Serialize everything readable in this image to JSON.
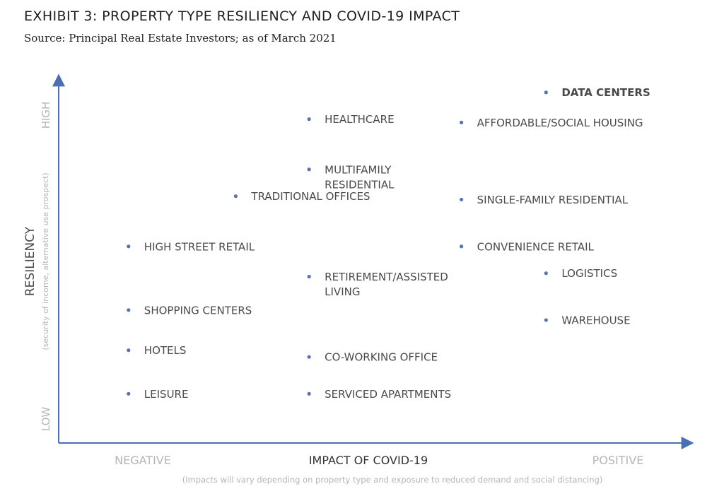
{
  "title": "EXHIBIT 3: PROPERTY TYPE RESILIENCY AND COVID-19 IMPACT",
  "subtitle": "Source: Principal Real Estate Investors; as of March 2021",
  "chart_data": {
    "type": "scatter",
    "x_axis": {
      "label": "IMPACT OF COVID-19",
      "low_label": "NEGATIVE",
      "high_label": "POSITIVE",
      "note": "(Impacts will vary depending on property type and exposure to reduced demand and social distancing)"
    },
    "y_axis": {
      "label": "RESILIENCY",
      "sublabel": "(security of income, alternative use prospect)",
      "low_label": "LOW",
      "high_label": "HIGH"
    },
    "xlim": [
      0,
      1
    ],
    "ylim": [
      0,
      1
    ],
    "points": [
      {
        "label": [
          "DATA CENTERS"
        ],
        "x": 0.84,
        "y": 0.99,
        "bold": true
      },
      {
        "label": [
          "HEALTHCARE"
        ],
        "x": 0.42,
        "y": 0.91
      },
      {
        "label": [
          "AFFORDABLE/SOCIAL HOUSING"
        ],
        "x": 0.69,
        "y": 0.9
      },
      {
        "label": [
          "MULTIFAMILY",
          "RESIDENTIAL"
        ],
        "x": 0.42,
        "y": 0.76
      },
      {
        "label": [
          "TRADITIONAL OFFICES"
        ],
        "x": 0.29,
        "y": 0.68
      },
      {
        "label": [
          "SINGLE-FAMILY RESIDENTIAL"
        ],
        "x": 0.69,
        "y": 0.67
      },
      {
        "label": [
          "HIGH STREET RETAIL"
        ],
        "x": 0.1,
        "y": 0.53
      },
      {
        "label": [
          "CONVENIENCE RETAIL"
        ],
        "x": 0.69,
        "y": 0.53
      },
      {
        "label": [
          "LOGISTICS"
        ],
        "x": 0.84,
        "y": 0.45
      },
      {
        "label": [
          "RETIREMENT/ASSISTED",
          "LIVING"
        ],
        "x": 0.42,
        "y": 0.44
      },
      {
        "label": [
          "SHOPPING CENTERS"
        ],
        "x": 0.1,
        "y": 0.34
      },
      {
        "label": [
          "WAREHOUSE"
        ],
        "x": 0.84,
        "y": 0.31
      },
      {
        "label": [
          "HOTELS"
        ],
        "x": 0.1,
        "y": 0.22
      },
      {
        "label": [
          "CO-WORKING OFFICE"
        ],
        "x": 0.42,
        "y": 0.2
      },
      {
        "label": [
          "LEISURE"
        ],
        "x": 0.1,
        "y": 0.09
      },
      {
        "label": [
          "SERVICED APARTMENTS"
        ],
        "x": 0.42,
        "y": 0.09
      }
    ],
    "colors": {
      "marker": "#5a73b0",
      "axis": "#4a6fb5",
      "label": "#4a4a4a",
      "axis_word": "#b5b5b5"
    }
  }
}
